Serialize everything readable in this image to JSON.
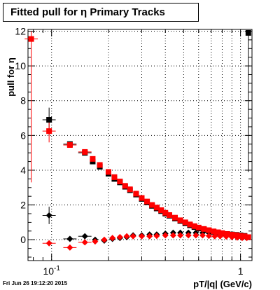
{
  "footer": {
    "timestamp": "Fri Jun 26 19:12:20 2015"
  },
  "colors": {
    "black_series": "#000000",
    "red_series": "#ff0000",
    "grid": "#000000"
  },
  "chart_data": {
    "type": "scatter",
    "title": "Fitted pull for  η  Primary Tracks",
    "xlabel": "pT/|q| (GeV/c)",
    "ylabel": "pull for  η",
    "xscale": "log",
    "xlim": [
      0.075,
      1.15
    ],
    "ylim": [
      -1.2,
      12.1
    ],
    "grid": true,
    "x_tick_labels": [
      {
        "value": 0.1,
        "base": "10",
        "exp": "-1"
      },
      {
        "value": 1,
        "base": "1",
        "exp": ""
      }
    ],
    "y_ticks": [
      0,
      2,
      4,
      6,
      8,
      10,
      12
    ],
    "series": [
      {
        "color": "#000000",
        "marker": "square",
        "points": [
          [
            0.097,
            6.9
          ],
          [
            0.125,
            5.5
          ],
          [
            0.15,
            5.0
          ],
          [
            0.165,
            4.5
          ],
          [
            0.18,
            4.2
          ],
          [
            0.2,
            3.8
          ],
          [
            0.215,
            3.5
          ],
          [
            0.23,
            3.3
          ],
          [
            0.245,
            3.05
          ],
          [
            0.26,
            2.85
          ],
          [
            0.28,
            2.6
          ],
          [
            0.3,
            2.35
          ],
          [
            0.32,
            2.15
          ],
          [
            0.34,
            1.95
          ],
          [
            0.36,
            1.8
          ],
          [
            0.38,
            1.65
          ],
          [
            0.4,
            1.5
          ],
          [
            0.42,
            1.38
          ],
          [
            0.45,
            1.22
          ],
          [
            0.48,
            1.08
          ],
          [
            0.51,
            0.95
          ],
          [
            0.54,
            0.83
          ],
          [
            0.57,
            0.73
          ],
          [
            0.6,
            0.65
          ],
          [
            0.64,
            0.57
          ],
          [
            0.68,
            0.5
          ],
          [
            0.72,
            0.45
          ],
          [
            0.76,
            0.4
          ],
          [
            0.8,
            0.37
          ],
          [
            0.85,
            0.33
          ],
          [
            0.9,
            0.3
          ],
          [
            0.95,
            0.28
          ],
          [
            1.0,
            0.25
          ],
          [
            1.05,
            0.22
          ],
          [
            1.1,
            11.9
          ]
        ]
      },
      {
        "color": "#000000",
        "marker": "diamond",
        "points": [
          [
            0.097,
            1.4
          ],
          [
            0.125,
            0.05
          ],
          [
            0.15,
            0.2
          ],
          [
            0.17,
            0.0
          ],
          [
            0.19,
            -0.05
          ],
          [
            0.21,
            0.05
          ],
          [
            0.23,
            0.1
          ],
          [
            0.25,
            0.15
          ],
          [
            0.27,
            0.25
          ],
          [
            0.3,
            0.25
          ],
          [
            0.33,
            0.3
          ],
          [
            0.36,
            0.3
          ],
          [
            0.4,
            0.35
          ],
          [
            0.44,
            0.4
          ],
          [
            0.48,
            0.4
          ],
          [
            0.53,
            0.4
          ],
          [
            0.58,
            0.4
          ],
          [
            0.63,
            0.4
          ],
          [
            0.68,
            0.4
          ],
          [
            0.73,
            0.38
          ],
          [
            0.78,
            0.35
          ],
          [
            0.84,
            0.3
          ],
          [
            0.9,
            0.28
          ],
          [
            0.96,
            0.25
          ],
          [
            1.02,
            0.2
          ],
          [
            1.08,
            0.15
          ]
        ]
      },
      {
        "color": "#ff0000",
        "marker": "square",
        "points": [
          [
            0.078,
            11.55
          ],
          [
            0.097,
            6.25
          ],
          [
            0.125,
            5.45
          ],
          [
            0.15,
            5.05
          ],
          [
            0.165,
            4.65
          ],
          [
            0.18,
            4.3
          ],
          [
            0.2,
            3.9
          ],
          [
            0.215,
            3.6
          ],
          [
            0.23,
            3.35
          ],
          [
            0.245,
            3.1
          ],
          [
            0.26,
            2.9
          ],
          [
            0.28,
            2.65
          ],
          [
            0.3,
            2.4
          ],
          [
            0.32,
            2.2
          ],
          [
            0.34,
            2.0
          ],
          [
            0.36,
            1.85
          ],
          [
            0.38,
            1.7
          ],
          [
            0.4,
            1.55
          ],
          [
            0.42,
            1.42
          ],
          [
            0.45,
            1.27
          ],
          [
            0.48,
            1.12
          ],
          [
            0.51,
            1.0
          ],
          [
            0.54,
            0.88
          ],
          [
            0.57,
            0.78
          ],
          [
            0.6,
            0.7
          ],
          [
            0.64,
            0.62
          ],
          [
            0.68,
            0.55
          ],
          [
            0.72,
            0.48
          ],
          [
            0.76,
            0.43
          ],
          [
            0.8,
            0.38
          ],
          [
            0.85,
            0.33
          ],
          [
            0.9,
            0.29
          ],
          [
            0.95,
            0.26
          ],
          [
            1.0,
            0.22
          ],
          [
            1.05,
            0.2
          ],
          [
            1.1,
            0.15
          ]
        ]
      },
      {
        "color": "#ff0000",
        "marker": "diamond",
        "points": [
          [
            0.097,
            -0.2
          ],
          [
            0.125,
            -0.45
          ],
          [
            0.15,
            -0.15
          ],
          [
            0.17,
            -0.1
          ],
          [
            0.19,
            0.0
          ],
          [
            0.21,
            0.1
          ],
          [
            0.23,
            0.15
          ],
          [
            0.25,
            0.2
          ],
          [
            0.27,
            0.2
          ],
          [
            0.3,
            0.2
          ],
          [
            0.33,
            0.2
          ],
          [
            0.36,
            0.22
          ],
          [
            0.4,
            0.25
          ],
          [
            0.44,
            0.25
          ],
          [
            0.48,
            0.25
          ],
          [
            0.53,
            0.25
          ],
          [
            0.58,
            0.25
          ],
          [
            0.63,
            0.25
          ],
          [
            0.68,
            0.22
          ],
          [
            0.73,
            0.2
          ],
          [
            0.78,
            0.2
          ],
          [
            0.84,
            0.18
          ],
          [
            0.9,
            0.15
          ],
          [
            0.96,
            0.12
          ],
          [
            1.02,
            0.1
          ],
          [
            1.08,
            0.1
          ]
        ]
      }
    ],
    "error_bars": [
      {
        "series": 2,
        "x": 0.078,
        "low": 3.3,
        "high": 12.0
      },
      {
        "series": 0,
        "x": 1.1,
        "low": 3.9,
        "high": 12.0
      },
      {
        "series": 0,
        "x": 0.097,
        "low": 6.0,
        "high": 7.6
      },
      {
        "series": 2,
        "x": 0.097,
        "low": 5.6,
        "high": 6.9
      },
      {
        "series": 1,
        "x": 0.097,
        "low": 0.9,
        "high": 1.9
      }
    ]
  }
}
